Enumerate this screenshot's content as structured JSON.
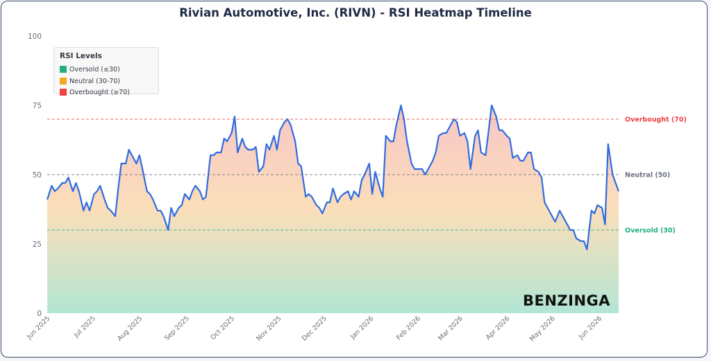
{
  "title": "Rivian Automotive, Inc. (RIVN) - RSI Heatmap Timeline",
  "legend": {
    "title": "RSI Levels",
    "items": [
      {
        "label": "Oversold (≤30)",
        "color": "#22b07d"
      },
      {
        "label": "Neutral (30-70)",
        "color": "#f5a623"
      },
      {
        "label": "Overbought (≥70)",
        "color": "#ef4444"
      }
    ]
  },
  "brand": "BENZINGA",
  "chart_data": {
    "type": "area",
    "title": "Rivian Automotive, Inc. (RIVN) - RSI Heatmap Timeline",
    "ylim": [
      0,
      100
    ],
    "y_ticks": [
      0,
      25,
      50,
      75,
      100
    ],
    "x_ticks": [
      "Jun 2025",
      "Jul 2025",
      "Aug 2025",
      "Sep 2025",
      "Oct 2025",
      "Nov 2025",
      "Dec 2025",
      "Jan 2026",
      "Feb 2026",
      "Mar 2026",
      "Apr 2026",
      "May 2026",
      "Jun 2026"
    ],
    "x_range": [
      "2025-05-30",
      "2026-06-12"
    ],
    "reference_lines": [
      {
        "label": "Overbought (70)",
        "value": 70,
        "color": "#ef4444"
      },
      {
        "label": "Neutral (50)",
        "value": 50,
        "color": "#6b7280"
      },
      {
        "label": "Oversold (30)",
        "value": 30,
        "color": "#22b07d"
      }
    ],
    "line_color": "#2f6be0",
    "grid": false,
    "series": [
      {
        "points": [
          [
            "2025-05-30",
            41
          ],
          [
            "2025-06-02",
            46
          ],
          [
            "2025-06-04",
            44
          ],
          [
            "2025-06-06",
            45
          ],
          [
            "2025-06-09",
            47
          ],
          [
            "2025-06-11",
            47
          ],
          [
            "2025-06-13",
            49
          ],
          [
            "2025-06-16",
            44
          ],
          [
            "2025-06-18",
            47
          ],
          [
            "2025-06-20",
            44
          ],
          [
            "2025-06-23",
            37
          ],
          [
            "2025-06-25",
            40
          ],
          [
            "2025-06-27",
            37
          ],
          [
            "2025-06-30",
            43
          ],
          [
            "2025-07-02",
            44
          ],
          [
            "2025-07-04",
            46
          ],
          [
            "2025-07-07",
            41
          ],
          [
            "2025-07-09",
            38
          ],
          [
            "2025-07-11",
            37
          ],
          [
            "2025-07-14",
            35
          ],
          [
            "2025-07-16",
            45
          ],
          [
            "2025-07-18",
            54
          ],
          [
            "2025-07-21",
            54
          ],
          [
            "2025-07-23",
            59
          ],
          [
            "2025-07-25",
            57
          ],
          [
            "2025-07-28",
            54
          ],
          [
            "2025-07-30",
            57
          ],
          [
            "2025-08-01",
            52
          ],
          [
            "2025-08-04",
            44
          ],
          [
            "2025-08-06",
            43
          ],
          [
            "2025-08-08",
            41
          ],
          [
            "2025-08-11",
            37
          ],
          [
            "2025-08-13",
            37
          ],
          [
            "2025-08-15",
            35
          ],
          [
            "2025-08-18",
            30
          ],
          [
            "2025-08-20",
            38
          ],
          [
            "2025-08-22",
            35
          ],
          [
            "2025-08-25",
            38
          ],
          [
            "2025-08-27",
            39
          ],
          [
            "2025-08-29",
            43
          ],
          [
            "2025-09-01",
            41
          ],
          [
            "2025-09-03",
            44
          ],
          [
            "2025-09-05",
            46
          ],
          [
            "2025-09-08",
            44
          ],
          [
            "2025-09-10",
            41
          ],
          [
            "2025-09-12",
            42
          ],
          [
            "2025-09-15",
            57
          ],
          [
            "2025-09-17",
            57
          ],
          [
            "2025-09-19",
            58
          ],
          [
            "2025-09-22",
            58
          ],
          [
            "2025-09-24",
            63
          ],
          [
            "2025-09-26",
            62
          ],
          [
            "2025-09-29",
            65
          ],
          [
            "2025-10-01",
            71
          ],
          [
            "2025-10-03",
            58
          ],
          [
            "2025-10-06",
            63
          ],
          [
            "2025-10-08",
            60
          ],
          [
            "2025-10-10",
            59
          ],
          [
            "2025-10-13",
            59
          ],
          [
            "2025-10-15",
            60
          ],
          [
            "2025-10-17",
            51
          ],
          [
            "2025-10-20",
            53
          ],
          [
            "2025-10-22",
            61
          ],
          [
            "2025-10-24",
            59
          ],
          [
            "2025-10-27",
            64
          ],
          [
            "2025-10-29",
            59
          ],
          [
            "2025-10-31",
            66
          ],
          [
            "2025-11-03",
            69
          ],
          [
            "2025-11-05",
            70
          ],
          [
            "2025-11-07",
            68
          ],
          [
            "2025-11-10",
            62
          ],
          [
            "2025-11-12",
            54
          ],
          [
            "2025-11-14",
            53
          ],
          [
            "2025-11-17",
            42
          ],
          [
            "2025-11-19",
            43
          ],
          [
            "2025-11-21",
            42
          ],
          [
            "2025-11-24",
            39
          ],
          [
            "2025-11-26",
            38
          ],
          [
            "2025-11-28",
            36
          ],
          [
            "2025-12-01",
            40
          ],
          [
            "2025-12-03",
            40
          ],
          [
            "2025-12-05",
            45
          ],
          [
            "2025-12-08",
            40
          ],
          [
            "2025-12-10",
            42
          ],
          [
            "2025-12-12",
            43
          ],
          [
            "2025-12-15",
            44
          ],
          [
            "2025-12-17",
            41
          ],
          [
            "2025-12-19",
            44
          ],
          [
            "2025-12-22",
            42
          ],
          [
            "2025-12-24",
            48
          ],
          [
            "2025-12-26",
            50
          ],
          [
            "2025-12-29",
            54
          ],
          [
            "2025-12-31",
            43
          ],
          [
            "2026-01-02",
            51
          ],
          [
            "2026-01-05",
            45
          ],
          [
            "2026-01-07",
            42
          ],
          [
            "2026-01-09",
            64
          ],
          [
            "2026-01-12",
            62
          ],
          [
            "2026-01-14",
            62
          ],
          [
            "2026-01-16",
            68
          ],
          [
            "2026-01-19",
            75
          ],
          [
            "2026-01-21",
            70
          ],
          [
            "2026-01-23",
            62
          ],
          [
            "2026-01-26",
            54
          ],
          [
            "2026-01-28",
            52
          ],
          [
            "2026-01-30",
            52
          ],
          [
            "2026-02-02",
            52
          ],
          [
            "2026-02-04",
            50
          ],
          [
            "2026-02-06",
            52
          ],
          [
            "2026-02-09",
            55
          ],
          [
            "2026-02-11",
            58
          ],
          [
            "2026-02-13",
            64
          ],
          [
            "2026-02-16",
            65
          ],
          [
            "2026-02-18",
            65
          ],
          [
            "2026-02-20",
            67
          ],
          [
            "2026-02-23",
            70
          ],
          [
            "2026-02-25",
            69
          ],
          [
            "2026-02-27",
            64
          ],
          [
            "2026-03-02",
            65
          ],
          [
            "2026-03-04",
            62
          ],
          [
            "2026-03-06",
            52
          ],
          [
            "2026-03-09",
            64
          ],
          [
            "2026-03-11",
            66
          ],
          [
            "2026-03-13",
            58
          ],
          [
            "2026-03-16",
            57
          ],
          [
            "2026-03-18",
            66
          ],
          [
            "2026-03-20",
            75
          ],
          [
            "2026-03-23",
            71
          ],
          [
            "2026-03-25",
            66
          ],
          [
            "2026-03-27",
            66
          ],
          [
            "2026-03-30",
            64
          ],
          [
            "2026-04-01",
            63
          ],
          [
            "2026-04-03",
            56
          ],
          [
            "2026-04-06",
            57
          ],
          [
            "2026-04-08",
            55
          ],
          [
            "2026-04-10",
            55
          ],
          [
            "2026-04-13",
            58
          ],
          [
            "2026-04-15",
            58
          ],
          [
            "2026-04-17",
            52
          ],
          [
            "2026-04-20",
            51
          ],
          [
            "2026-04-22",
            49
          ],
          [
            "2026-04-24",
            40
          ],
          [
            "2026-04-27",
            37
          ],
          [
            "2026-04-29",
            35
          ],
          [
            "2026-05-01",
            33
          ],
          [
            "2026-05-04",
            37
          ],
          [
            "2026-05-06",
            35
          ],
          [
            "2026-05-08",
            33
          ],
          [
            "2026-05-11",
            30
          ],
          [
            "2026-05-13",
            30
          ],
          [
            "2026-05-15",
            27
          ],
          [
            "2026-05-18",
            26
          ],
          [
            "2026-05-20",
            26
          ],
          [
            "2026-05-22",
            23
          ],
          [
            "2026-05-25",
            37
          ],
          [
            "2026-05-27",
            36
          ],
          [
            "2026-05-29",
            39
          ],
          [
            "2026-06-01",
            38
          ],
          [
            "2026-06-03",
            32
          ],
          [
            "2026-06-05",
            61
          ],
          [
            "2026-06-08",
            50
          ],
          [
            "2026-06-10",
            47
          ],
          [
            "2026-06-12",
            44
          ]
        ]
      }
    ]
  }
}
